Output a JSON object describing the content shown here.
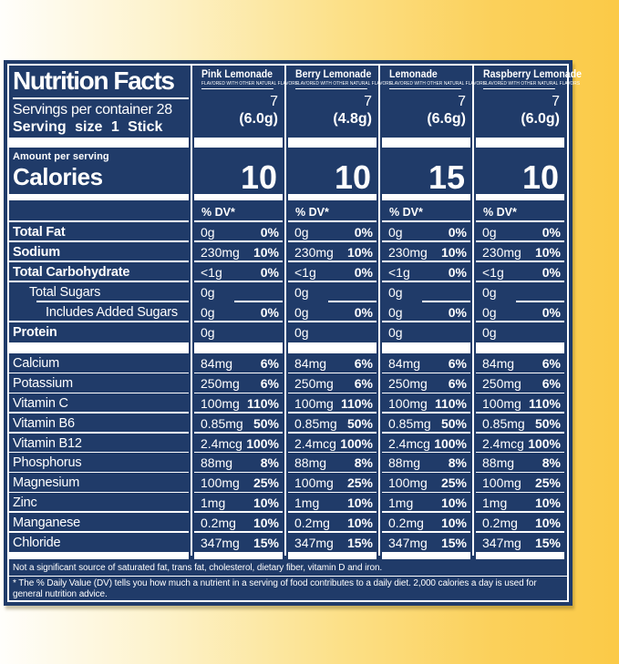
{
  "colors": {
    "navy": "#203b69",
    "label_text": "#ffffff",
    "background_yellow": "#fbca47",
    "background_white": "#fffefb"
  },
  "label": {
    "title": "Nutrition Facts",
    "servings_line": "Servings per container 28",
    "serving_size_line": "Serving size 1 Stick",
    "amount_per_serving": "Amount per serving",
    "calories_label": "Calories",
    "dv_header": "% DV*"
  },
  "flavors": [
    {
      "name": "Pink Lemonade",
      "subtitle": "FLAVORED WITH OTHER NATURAL FLAVORS",
      "servings_per_container": "7",
      "serving_size_g": "(6.0g)",
      "calories": "10"
    },
    {
      "name": "Berry Lemonade",
      "subtitle": "FLAVORED WITH OTHER NATURAL FLAVORS",
      "servings_per_container": "7",
      "serving_size_g": "(4.8g)",
      "calories": "10"
    },
    {
      "name": "Lemonade",
      "subtitle": "FLAVORED WITH OTHER NATURAL FLAVORS",
      "servings_per_container": "7",
      "serving_size_g": "(6.6g)",
      "calories": "15"
    },
    {
      "name": "Raspberry Lemonade",
      "subtitle": "FLAVORED WITH OTHER NATURAL FLAVORS",
      "servings_per_container": "7",
      "serving_size_g": "(6.0g)",
      "calories": "10"
    }
  ],
  "nutrient_rows": [
    {
      "name": "Total Fat",
      "bold": true,
      "indent": 0,
      "amount": "0g",
      "dv": "0%",
      "name_line": "full",
      "val_line": "full"
    },
    {
      "name": "Sodium",
      "bold": true,
      "indent": 0,
      "amount": "230mg",
      "dv": "10%",
      "name_line": "full",
      "val_line": "full"
    },
    {
      "name": "Total Carbohydrate",
      "bold": true,
      "indent": 0,
      "amount": "<1g",
      "dv": "0%",
      "name_line": "full",
      "val_line": "full"
    },
    {
      "name": "Total Sugars",
      "bold": false,
      "indent": 1,
      "amount": "0g",
      "dv": "",
      "name_line": "indent",
      "val_line": "right"
    },
    {
      "name": "Includes Added Sugars",
      "bold": false,
      "indent": 2,
      "amount": "0g",
      "dv": "0%",
      "name_line": "full",
      "val_line": "full"
    },
    {
      "name": "Protein",
      "bold": true,
      "indent": 0,
      "amount": "0g",
      "dv": "",
      "name_line": "none",
      "val_line": "none"
    }
  ],
  "mineral_rows": [
    {
      "name": "Calcium",
      "amount": "84mg",
      "dv": "6%",
      "name_line": "full",
      "val_line": "full"
    },
    {
      "name": "Potassium",
      "amount": "250mg",
      "dv": "6%",
      "name_line": "full",
      "val_line": "full"
    },
    {
      "name": "Vitamin C",
      "amount": "100mg",
      "dv": "110%",
      "name_line": "full",
      "val_line": "full"
    },
    {
      "name": "Vitamin B6",
      "amount": "0.85mg",
      "dv": "50%",
      "name_line": "full",
      "val_line": "full"
    },
    {
      "name": "Vitamin B12",
      "amount": "2.4mcg",
      "dv": "100%",
      "name_line": "full",
      "val_line": "full"
    },
    {
      "name": "Phosphorus",
      "amount": "88mg",
      "dv": "8%",
      "name_line": "full",
      "val_line": "full"
    },
    {
      "name": "Magnesium",
      "amount": "100mg",
      "dv": "25%",
      "name_line": "full",
      "val_line": "full"
    },
    {
      "name": "Zinc",
      "amount": "1mg",
      "dv": "10%",
      "name_line": "full",
      "val_line": "full"
    },
    {
      "name": "Manganese",
      "amount": "0.2mg",
      "dv": "10%",
      "name_line": "full",
      "val_line": "full"
    },
    {
      "name": "Chloride",
      "amount": "347mg",
      "dv": "15%",
      "name_line": "none",
      "val_line": "none"
    }
  ],
  "footnotes": {
    "not_significant": "Not a significant source of saturated fat, trans fat, cholesterol, dietary fiber, vitamin D and iron.",
    "daily_value": "* The % Daily Value (DV) tells you how much a nutrient in a serving of food contributes to a daily diet. 2,000 calories a day is used for general nutrition advice."
  }
}
